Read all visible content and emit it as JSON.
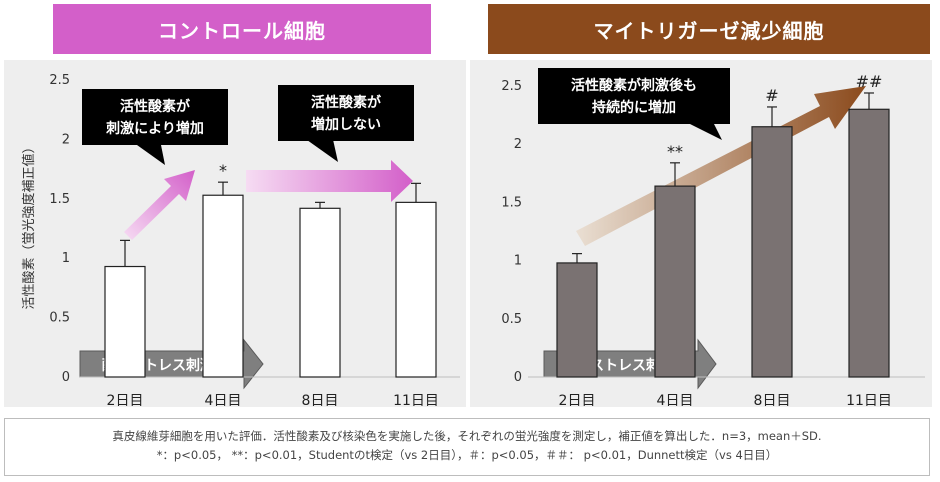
{
  "panels": [
    {
      "header": "コントロール細胞",
      "header_color": "#d35fc9",
      "ylabel": "活性酸素（蛍光強度補正値）",
      "arrow_label": "酸化ストレス刺激",
      "callouts": [
        "活性酸素が\n刺激により増加",
        "活性酸素が\n増加しない"
      ]
    },
    {
      "header": "マイトリガーゼ減少細胞",
      "header_color": "#8b4a1c",
      "arrow_label": "酸化ストレス刺激",
      "callouts": [
        "活性酸素が刺激後も\n持続的に増加"
      ]
    }
  ],
  "chart_data": [
    {
      "type": "bar",
      "title": "コントロール細胞",
      "ylabel": "活性酸素（蛍光強度補正値）",
      "categories": [
        "2日目",
        "4日目",
        "8日目",
        "11日目"
      ],
      "values": [
        0.93,
        1.53,
        1.42,
        1.47
      ],
      "errors": [
        0.22,
        0.11,
        0.05,
        0.16
      ],
      "significance": [
        "",
        "*",
        "",
        ""
      ],
      "ylim": [
        0,
        2.5
      ],
      "yticks": [
        "0",
        "0.5",
        "1",
        "1.5",
        "2",
        "2.5"
      ],
      "bar_color": "#ffffff",
      "grid": false
    },
    {
      "type": "bar",
      "title": "マイトリガーゼ減少細胞",
      "categories": [
        "2日目",
        "4日目",
        "8日目",
        "11日目"
      ],
      "values": [
        0.98,
        1.64,
        2.15,
        2.3
      ],
      "errors": [
        0.08,
        0.2,
        0.17,
        0.14
      ],
      "significance": [
        "",
        "**",
        "#",
        "##"
      ],
      "ylim": [
        0,
        2.5
      ],
      "yticks": [
        "0",
        "0.5",
        "1",
        "1.5",
        "2",
        "2.5"
      ],
      "bar_color": "#7a7272",
      "grid": false
    }
  ],
  "footnote": {
    "line1": "真皮線維芽細胞を用いた評価．活性酸素及び核染色を実施した後，それぞれの蛍光強度を測定し，補正値を算出した．n=3，mean＋SD.",
    "line2": "*：p<0.05，  **：p<0.01，Studentのt検定（vs 2日目），＃：p<0.05，＃＃： p<0.01，Dunnett検定（vs 4日目）"
  }
}
